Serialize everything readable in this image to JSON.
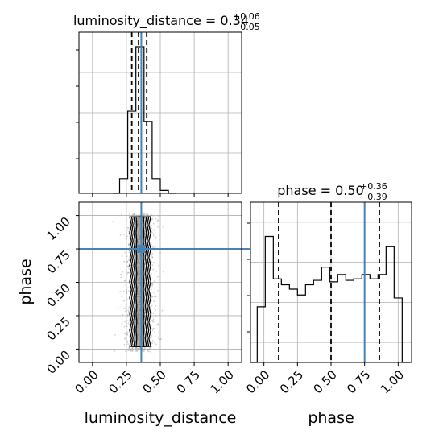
{
  "colors": {
    "truth": "#4682b4",
    "hist": "#000000",
    "grid": "#b0b0b0",
    "scatter": "#7f7f7f"
  },
  "chart_data": [
    {
      "type": "histogram",
      "panel": "luminosity_distance marginal",
      "title": {
        "main": "luminosity_distance = 0.34",
        "plus": "+0.06",
        "minus": "−0.05"
      },
      "xlim": [
        -0.1,
        1.1
      ],
      "bins": [
        {
          "x0": 0.15,
          "x1": 0.2,
          "y": 0.0
        },
        {
          "x0": 0.2,
          "x1": 0.26,
          "y": 0.1
        },
        {
          "x0": 0.26,
          "x1": 0.32,
          "y": 0.56
        },
        {
          "x0": 0.32,
          "x1": 0.38,
          "y": 1.0
        },
        {
          "x0": 0.38,
          "x1": 0.44,
          "y": 0.49
        },
        {
          "x0": 0.44,
          "x1": 0.5,
          "y": 0.1
        },
        {
          "x0": 0.5,
          "x1": 0.56,
          "y": 0.02
        },
        {
          "x0": 0.56,
          "x1": 0.62,
          "y": 0.0
        }
      ],
      "quantiles": [
        0.29,
        0.34,
        0.4
      ],
      "truth": 0.36,
      "grid": true
    },
    {
      "type": "histogram",
      "panel": "phase marginal",
      "title": {
        "main": "phase = 0.50",
        "plus": "+0.36",
        "minus": "−0.39"
      },
      "xlim": [
        -0.1,
        1.1
      ],
      "bins": [
        {
          "x0": -0.1,
          "x1": -0.05,
          "y": 0.0
        },
        {
          "x0": -0.05,
          "x1": 0.01,
          "y": 0.38
        },
        {
          "x0": 0.01,
          "x1": 0.07,
          "y": 0.86
        },
        {
          "x0": 0.07,
          "x1": 0.13,
          "y": 0.57
        },
        {
          "x0": 0.13,
          "x1": 0.19,
          "y": 0.53
        },
        {
          "x0": 0.19,
          "x1": 0.25,
          "y": 0.5
        },
        {
          "x0": 0.25,
          "x1": 0.31,
          "y": 0.46
        },
        {
          "x0": 0.31,
          "x1": 0.37,
          "y": 0.53
        },
        {
          "x0": 0.37,
          "x1": 0.43,
          "y": 0.56
        },
        {
          "x0": 0.43,
          "x1": 0.49,
          "y": 0.65
        },
        {
          "x0": 0.49,
          "x1": 0.55,
          "y": 0.55
        },
        {
          "x0": 0.55,
          "x1": 0.61,
          "y": 0.6
        },
        {
          "x0": 0.61,
          "x1": 0.67,
          "y": 0.56
        },
        {
          "x0": 0.67,
          "x1": 0.73,
          "y": 0.57
        },
        {
          "x0": 0.73,
          "x1": 0.79,
          "y": 0.6
        },
        {
          "x0": 0.79,
          "x1": 0.85,
          "y": 0.57
        },
        {
          "x0": 0.85,
          "x1": 0.91,
          "y": 0.6
        },
        {
          "x0": 0.91,
          "x1": 0.97,
          "y": 0.79
        },
        {
          "x0": 0.97,
          "x1": 1.03,
          "y": 0.44
        },
        {
          "x0": 1.03,
          "x1": 1.09,
          "y": 0.0
        }
      ],
      "quantiles": [
        0.11,
        0.5,
        0.86
      ],
      "truth": 0.75,
      "grid": true
    },
    {
      "type": "scatter",
      "panel": "2D posterior luminosity_distance vs phase",
      "xlabel": "luminosity_distance",
      "ylabel": "phase",
      "xlim": [
        -0.1,
        1.1
      ],
      "ylim": [
        -0.1,
        1.1
      ],
      "xticks": [
        "0.00",
        "0.25",
        "0.50",
        "0.75",
        "1.00"
      ],
      "yticks": [
        "0.00",
        "0.25",
        "0.50",
        "0.75",
        "1.00"
      ],
      "truth": {
        "x": 0.36,
        "y": 0.75
      },
      "cloud": {
        "x_center": 0.35,
        "x_spread": 0.055,
        "y_range": [
          -0.02,
          1.02
        ]
      },
      "contour_half_widths": [
        0.08,
        0.065,
        0.048,
        0.03
      ],
      "grid": true
    },
    {
      "type": "axis",
      "panel": "phase marginal x-axis",
      "xlabel": "phase",
      "xticks": [
        "0.00",
        "0.25",
        "0.50",
        "0.75",
        "1.00"
      ]
    }
  ]
}
